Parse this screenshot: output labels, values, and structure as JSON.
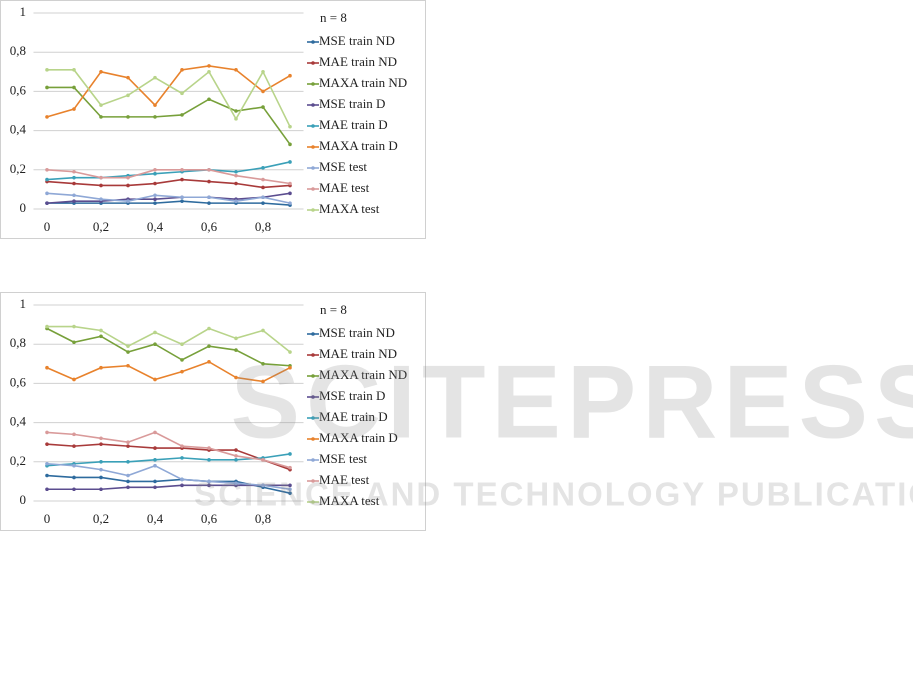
{
  "chart_data": [
    {
      "type": "line",
      "legend_title": "n = 8",
      "x": [
        0,
        0.1,
        0.2,
        0.3,
        0.4,
        0.5,
        0.6,
        0.7,
        0.8,
        0.9
      ],
      "xlim": [
        -0.05,
        0.95
      ],
      "xticks": [
        0,
        {
          "value": 0.2,
          "label": "0,2"
        },
        {
          "value": 0.4,
          "label": "0,4"
        },
        {
          "value": 0.6,
          "label": "0,6"
        },
        {
          "value": 0.8,
          "label": "0,8"
        }
      ],
      "ylim": [
        0,
        1
      ],
      "yticks": [
        0,
        {
          "value": 0.2,
          "label": "0,2"
        },
        {
          "value": 0.4,
          "label": "0,4"
        },
        {
          "value": 0.6,
          "label": "0,6"
        },
        {
          "value": 0.8,
          "label": "0,8"
        },
        1
      ],
      "grid": true,
      "series": [
        {
          "name": "MSE train ND",
          "color": "#2e6b9e",
          "values": [
            0.03,
            0.03,
            0.03,
            0.03,
            0.03,
            0.04,
            0.03,
            0.03,
            0.03,
            0.02
          ]
        },
        {
          "name": "MAE train ND",
          "color": "#a83a3a",
          "values": [
            0.14,
            0.13,
            0.12,
            0.12,
            0.13,
            0.15,
            0.14,
            0.13,
            0.11,
            0.12
          ]
        },
        {
          "name": "MAXA train ND",
          "color": "#77a03a",
          "values": [
            0.62,
            0.62,
            0.47,
            0.47,
            0.47,
            0.48,
            0.56,
            0.5,
            0.52,
            0.33
          ]
        },
        {
          "name": "MSE train D",
          "color": "#5b4d8f",
          "values": [
            0.03,
            0.04,
            0.04,
            0.05,
            0.05,
            0.06,
            0.06,
            0.05,
            0.06,
            0.08
          ]
        },
        {
          "name": "MAE train D",
          "color": "#3aa0b8",
          "values": [
            0.15,
            0.16,
            0.16,
            0.17,
            0.18,
            0.19,
            0.2,
            0.19,
            0.21,
            0.24
          ]
        },
        {
          "name": "MAXA train D",
          "color": "#e8822c",
          "values": [
            0.47,
            0.51,
            0.7,
            0.67,
            0.53,
            0.71,
            0.73,
            0.71,
            0.6,
            0.68
          ]
        },
        {
          "name": "MSE test",
          "color": "#8fa8d6",
          "values": [
            0.08,
            0.07,
            0.05,
            0.04,
            0.07,
            0.06,
            0.06,
            0.04,
            0.06,
            0.03
          ]
        },
        {
          "name": "MAE test",
          "color": "#d99a9a",
          "values": [
            0.2,
            0.19,
            0.16,
            0.16,
            0.2,
            0.2,
            0.2,
            0.17,
            0.15,
            0.13
          ]
        },
        {
          "name": "MAXA test",
          "color": "#b8d48a",
          "values": [
            0.71,
            0.71,
            0.53,
            0.58,
            0.67,
            0.59,
            0.7,
            0.46,
            0.7,
            0.42
          ]
        }
      ]
    },
    {
      "type": "line",
      "legend_title": "n = 8",
      "x": [
        0,
        0.1,
        0.2,
        0.3,
        0.4,
        0.5,
        0.6,
        0.7,
        0.8,
        0.9
      ],
      "xlim": [
        -0.05,
        0.95
      ],
      "xticks": [
        0,
        {
          "value": 0.2,
          "label": "0,2"
        },
        {
          "value": 0.4,
          "label": "0,4"
        },
        {
          "value": 0.6,
          "label": "0,6"
        },
        {
          "value": 0.8,
          "label": "0,8"
        }
      ],
      "ylim": [
        0,
        1
      ],
      "yticks": [
        0,
        {
          "value": 0.2,
          "label": "0,2"
        },
        {
          "value": 0.4,
          "label": "0,4"
        },
        {
          "value": 0.6,
          "label": "0,6"
        },
        {
          "value": 0.8,
          "label": "0,8"
        },
        1
      ],
      "grid": true,
      "series": [
        {
          "name": "MSE train ND",
          "color": "#2e6b9e",
          "values": [
            0.13,
            0.12,
            0.12,
            0.1,
            0.1,
            0.11,
            0.1,
            0.1,
            0.07,
            0.04
          ]
        },
        {
          "name": "MAE train ND",
          "color": "#a83a3a",
          "values": [
            0.29,
            0.28,
            0.29,
            0.28,
            0.27,
            0.27,
            0.26,
            0.26,
            0.21,
            0.16
          ]
        },
        {
          "name": "MAXA train ND",
          "color": "#77a03a",
          "values": [
            0.88,
            0.81,
            0.84,
            0.76,
            0.8,
            0.72,
            0.79,
            0.77,
            0.7,
            0.69
          ]
        },
        {
          "name": "MSE train D",
          "color": "#5b4d8f",
          "values": [
            0.06,
            0.06,
            0.06,
            0.07,
            0.07,
            0.08,
            0.08,
            0.08,
            0.08,
            0.08
          ]
        },
        {
          "name": "MAE train D",
          "color": "#3aa0b8",
          "values": [
            0.18,
            0.19,
            0.2,
            0.2,
            0.21,
            0.22,
            0.21,
            0.21,
            0.22,
            0.24
          ]
        },
        {
          "name": "MAXA train D",
          "color": "#e8822c",
          "values": [
            0.68,
            0.62,
            0.68,
            0.69,
            0.62,
            0.66,
            0.71,
            0.63,
            0.61,
            0.68
          ]
        },
        {
          "name": "MSE test",
          "color": "#8fa8d6",
          "values": [
            0.19,
            0.18,
            0.16,
            0.13,
            0.18,
            0.11,
            0.1,
            0.09,
            0.08,
            0.06
          ]
        },
        {
          "name": "MAE test",
          "color": "#d99a9a",
          "values": [
            0.35,
            0.34,
            0.32,
            0.3,
            0.35,
            0.28,
            0.27,
            0.23,
            0.21,
            0.17
          ]
        },
        {
          "name": "MAXA test",
          "color": "#b8d48a",
          "values": [
            0.89,
            0.89,
            0.87,
            0.79,
            0.86,
            0.8,
            0.88,
            0.83,
            0.87,
            0.76
          ]
        }
      ]
    }
  ],
  "watermark": {
    "title": "SCITEPRESS",
    "subtitle": "SCIENCE AND TECHNOLOGY PUBLICATIONS"
  }
}
